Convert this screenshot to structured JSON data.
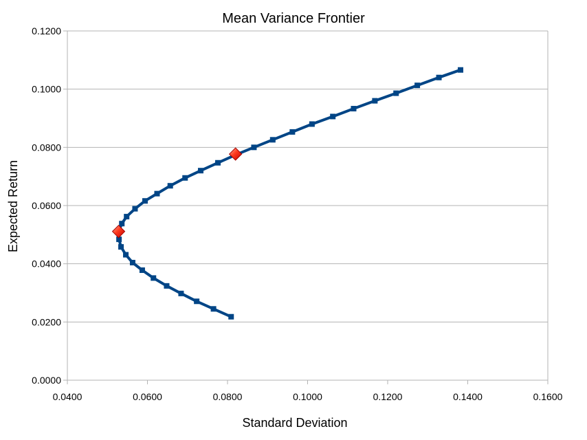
{
  "chart_data": {
    "type": "scatter",
    "title": "Mean Variance Frontier",
    "xlabel": "Standard Deviation",
    "ylabel": "Expected Return",
    "xlim": [
      0.04,
      0.16
    ],
    "ylim": [
      0.0,
      0.12
    ],
    "x_ticks": [
      "0.0400",
      "0.0600",
      "0.0800",
      "0.1000",
      "0.1200",
      "0.1400",
      "0.1600"
    ],
    "y_ticks": [
      "0.0000",
      "0.0200",
      "0.0400",
      "0.0600",
      "0.0800",
      "0.1000",
      "0.1200"
    ],
    "grid": "horizontal",
    "legend": "none",
    "series": [
      {
        "color": "#004586",
        "marker": "square",
        "points": [
          [
            0.1382,
            0.1066
          ],
          [
            0.1328,
            0.104
          ],
          [
            0.1274,
            0.1013
          ],
          [
            0.1221,
            0.0986
          ],
          [
            0.1168,
            0.096
          ],
          [
            0.1115,
            0.0933
          ],
          [
            0.1063,
            0.0906
          ],
          [
            0.1011,
            0.088
          ],
          [
            0.0962,
            0.0853
          ],
          [
            0.0913,
            0.0826
          ],
          [
            0.0866,
            0.08
          ],
          [
            0.082,
            0.0774
          ],
          [
            0.0776,
            0.0747
          ],
          [
            0.0733,
            0.072
          ],
          [
            0.0694,
            0.0695
          ],
          [
            0.0657,
            0.0668
          ],
          [
            0.0624,
            0.0641
          ],
          [
            0.0594,
            0.0616
          ],
          [
            0.0569,
            0.0589
          ],
          [
            0.0548,
            0.0562
          ],
          [
            0.0536,
            0.0538
          ],
          [
            0.0528,
            0.0511
          ],
          [
            0.0529,
            0.0484
          ],
          [
            0.0534,
            0.0458
          ],
          [
            0.0546,
            0.0431
          ],
          [
            0.0563,
            0.0404
          ],
          [
            0.0587,
            0.0378
          ],
          [
            0.0615,
            0.0351
          ],
          [
            0.0648,
            0.0324
          ],
          [
            0.0684,
            0.0298
          ],
          [
            0.0723,
            0.0271
          ],
          [
            0.0765,
            0.0245
          ],
          [
            0.0809,
            0.0218
          ]
        ]
      },
      {
        "color": "#ff3333",
        "marker": "diamond",
        "points": [
          [
            0.0528,
            0.0511
          ],
          [
            0.082,
            0.0777
          ]
        ]
      }
    ]
  }
}
